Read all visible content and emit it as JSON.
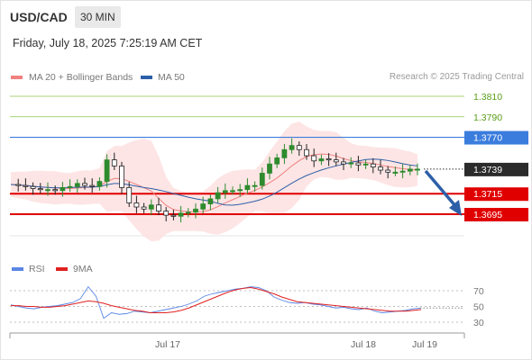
{
  "header": {
    "symbol": "USD/CAD",
    "timeframe": "30 MIN"
  },
  "datetime": "Friday, July 18, 2025 7:25:19 AM CET",
  "credit": "Research © 2025 Trading Central",
  "legend": {
    "bollinger": {
      "label": "MA 20 + Bollinger Bands",
      "color": "#f08080"
    },
    "ma50": {
      "label": "MA 50",
      "color": "#2d5fa8"
    }
  },
  "rsi_legend": {
    "rsi": {
      "label": "RSI",
      "color": "#5b86e5"
    },
    "ma9": {
      "label": "9MA",
      "color": "#e02020"
    }
  },
  "colors": {
    "bull": "#2e8b2e",
    "bear": "#222222",
    "resistance": "#3b7ddd",
    "support": "#e00000",
    "target": "#8bc34a",
    "arrow": "#2d5fa8"
  },
  "chart_data": [
    {
      "type": "candlestick",
      "x_ticks": [
        "Jul 17",
        "Jul 18",
        "Jul 19"
      ],
      "last_price": "1.3739",
      "levels": [
        {
          "price": "1.3810",
          "kind": "target"
        },
        {
          "price": "1.3790",
          "kind": "target"
        },
        {
          "price": "1.3770",
          "kind": "resistance"
        },
        {
          "price": "1.3715",
          "kind": "support"
        },
        {
          "price": "1.3695",
          "kind": "support"
        }
      ],
      "close_series": [
        1.3724,
        1.3723,
        1.3722,
        1.372,
        1.3719,
        1.3719,
        1.3718,
        1.3721,
        1.3722,
        1.3725,
        1.3723,
        1.3722,
        1.3727,
        1.3748,
        1.3742,
        1.3721,
        1.3706,
        1.3702,
        1.37,
        1.3704,
        1.3698,
        1.3694,
        1.3693,
        1.3696,
        1.3697,
        1.37,
        1.3705,
        1.371,
        1.3716,
        1.3718,
        1.3718,
        1.3719,
        1.3723,
        1.3723,
        1.3735,
        1.3744,
        1.375,
        1.3758,
        1.3762,
        1.3758,
        1.3752,
        1.3747,
        1.3749,
        1.3748,
        1.3746,
        1.3744,
        1.3745,
        1.3743,
        1.3744,
        1.3741,
        1.3738,
        1.3736,
        1.3736,
        1.3737,
        1.3739,
        1.3739
      ],
      "series": [
        {
          "name": "MA 20 + Bollinger Bands"
        },
        {
          "name": "MA 50"
        }
      ]
    },
    {
      "type": "line",
      "y_ticks": [
        70,
        50,
        30
      ],
      "rsi": [
        52,
        50,
        48,
        47,
        49,
        50,
        51,
        53,
        55,
        60,
        75,
        63,
        35,
        42,
        40,
        41,
        44,
        43,
        42,
        44,
        46,
        48,
        50,
        53,
        57,
        63,
        66,
        68,
        70,
        72,
        73,
        75,
        74,
        70,
        62,
        58,
        55,
        54,
        55,
        53,
        52,
        50,
        48,
        49,
        47,
        46,
        48,
        44,
        42,
        43,
        44,
        45,
        47,
        48
      ],
      "ma9": [
        51,
        51,
        50,
        50,
        49,
        49,
        50,
        51,
        53,
        55,
        57,
        56,
        54,
        51,
        49,
        47,
        45,
        44,
        42,
        42,
        42,
        43,
        45,
        48,
        52,
        56,
        60,
        64,
        68,
        71,
        73,
        74,
        72,
        69,
        66,
        62,
        59,
        56,
        55,
        54,
        53,
        52,
        51,
        50,
        49,
        48,
        47,
        46,
        45,
        44,
        44,
        44,
        45,
        46
      ]
    }
  ]
}
